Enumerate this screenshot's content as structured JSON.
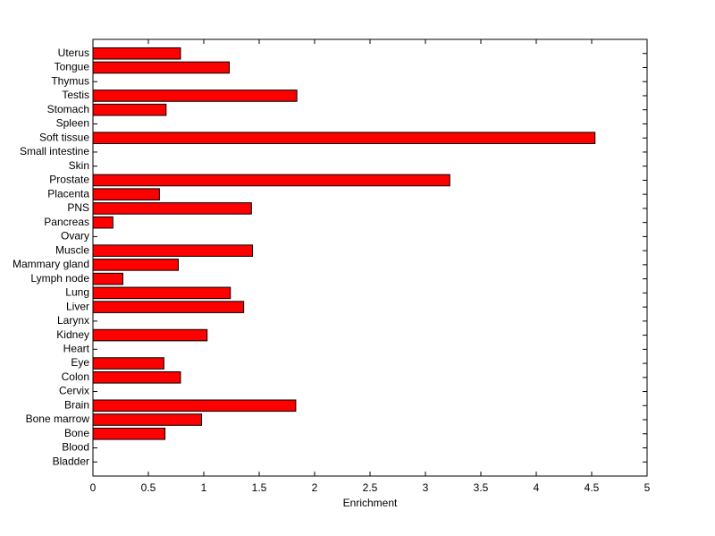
{
  "chart_data": {
    "type": "barh",
    "xlabel": "Enrichment",
    "categories": [
      "Uterus",
      "Tongue",
      "Thymus",
      "Testis",
      "Stomach",
      "Spleen",
      "Soft tissue",
      "Small intestine",
      "Skin",
      "Prostate",
      "Placenta",
      "PNS",
      "Pancreas",
      "Ovary",
      "Muscle",
      "Mammary gland",
      "Lymph node",
      "Lung",
      "Liver",
      "Larynx",
      "Kidney",
      "Heart",
      "Eye",
      "Colon",
      "Cervix",
      "Brain",
      "Bone marrow",
      "Bone",
      "Blood",
      "Bladder"
    ],
    "values": [
      0.79,
      1.23,
      0,
      1.84,
      0.66,
      0,
      4.53,
      0,
      0,
      3.22,
      0.6,
      1.43,
      0.18,
      0,
      1.44,
      0.77,
      0.27,
      1.24,
      1.36,
      0,
      1.03,
      0,
      0.64,
      0.79,
      0,
      1.83,
      0.98,
      0.65,
      0,
      0
    ],
    "color": "#ff0000",
    "xlim": [
      0,
      5
    ],
    "xticks": [
      0,
      0.5,
      1,
      1.5,
      2,
      2.5,
      3,
      3.5,
      4,
      4.5,
      5
    ]
  }
}
